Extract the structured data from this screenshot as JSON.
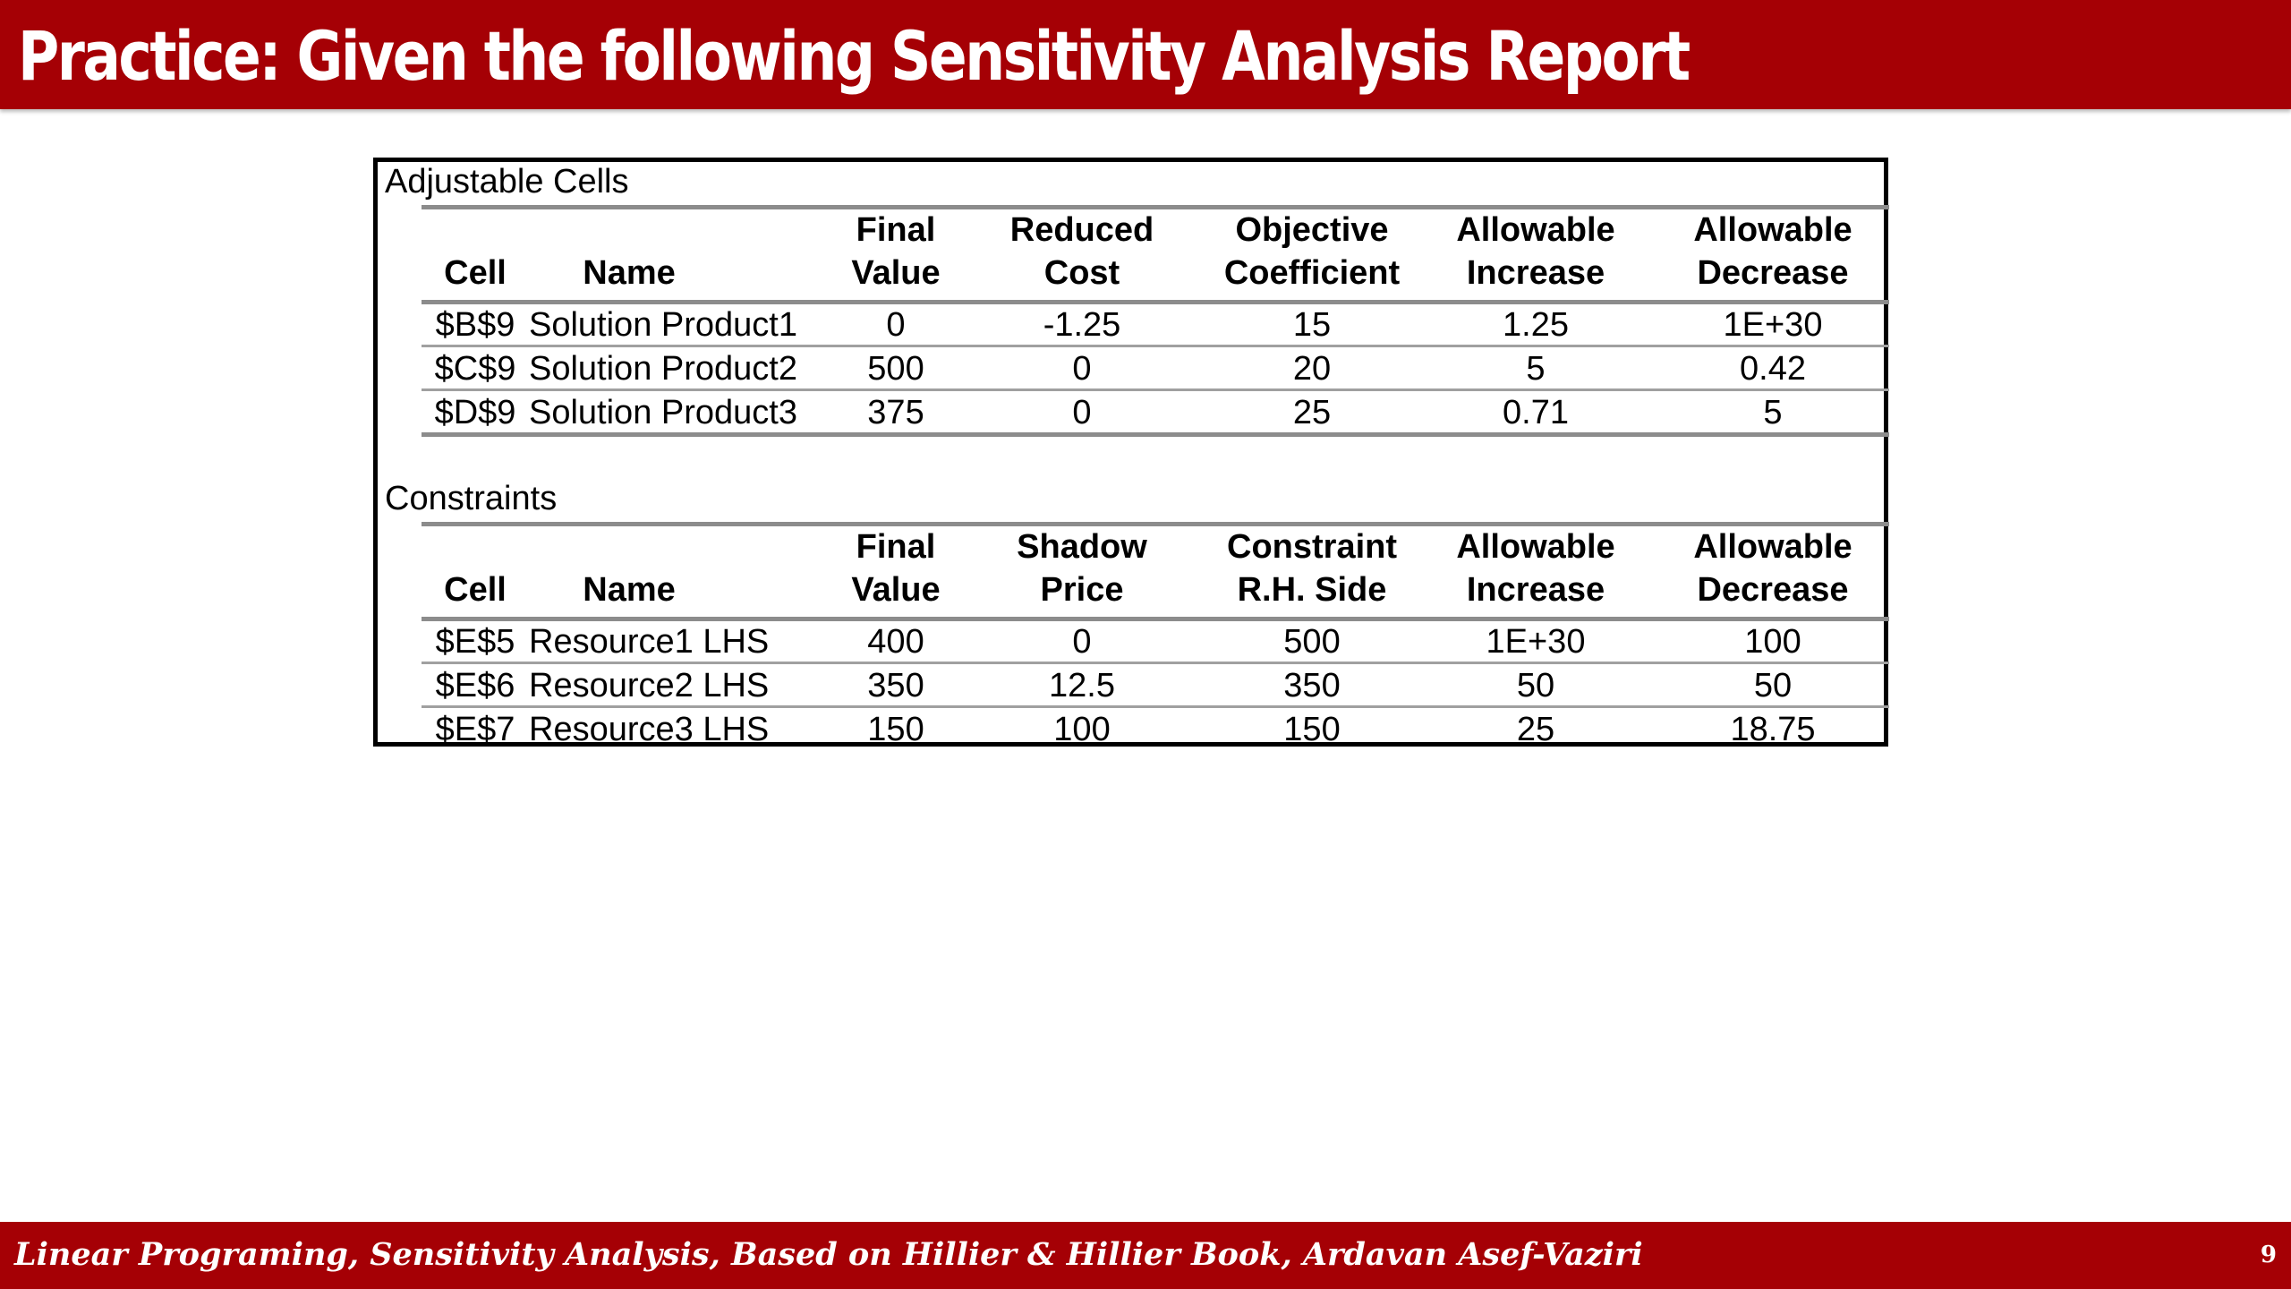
{
  "slide": {
    "title": "Practice: Given the following Sensitivity Analysis Report",
    "footer": "Linear Programing, Sensitivity Analysis, Based on Hillier & Hillier Book, Ardavan Asef-Vaziri",
    "page_number": "9",
    "colors": {
      "banner": "#a50005",
      "banner_text": "#ffffff",
      "rule": "#8c8c8c"
    }
  },
  "adjustable": {
    "label": "Adjustable Cells",
    "headers": [
      {
        "top": "",
        "bottom": "Cell"
      },
      {
        "top": "",
        "bottom": "Name"
      },
      {
        "top": "Final",
        "bottom": "Value"
      },
      {
        "top": "Reduced",
        "bottom": "Cost"
      },
      {
        "top": "Objective",
        "bottom": "Coefficient"
      },
      {
        "top": "Allowable",
        "bottom": "Increase"
      },
      {
        "top": "Allowable",
        "bottom": "Decrease"
      }
    ],
    "rows": [
      [
        "$B$9",
        "Solution Product1",
        "0",
        "-1.25",
        "15",
        "1.25",
        "1E+30"
      ],
      [
        "$C$9",
        "Solution Product2",
        "500",
        "0",
        "20",
        "5",
        "0.42"
      ],
      [
        "$D$9",
        "Solution Product3",
        "375",
        "0",
        "25",
        "0.71",
        "5"
      ]
    ]
  },
  "constraints": {
    "label": "Constraints",
    "headers": [
      {
        "top": "",
        "bottom": "Cell"
      },
      {
        "top": "",
        "bottom": "Name"
      },
      {
        "top": "Final",
        "bottom": "Value"
      },
      {
        "top": "Shadow",
        "bottom": "Price"
      },
      {
        "top": "Constraint",
        "bottom": "R.H. Side"
      },
      {
        "top": "Allowable",
        "bottom": "Increase"
      },
      {
        "top": "Allowable",
        "bottom": "Decrease"
      }
    ],
    "rows": [
      [
        "$E$5",
        "Resource1 LHS",
        "400",
        "0",
        "500",
        "1E+30",
        "100"
      ],
      [
        "$E$6",
        "Resource2 LHS",
        "350",
        "12.5",
        "350",
        "50",
        "50"
      ],
      [
        "$E$7",
        "Resource3 LHS",
        "150",
        "100",
        "150",
        "25",
        "18.75"
      ]
    ]
  }
}
